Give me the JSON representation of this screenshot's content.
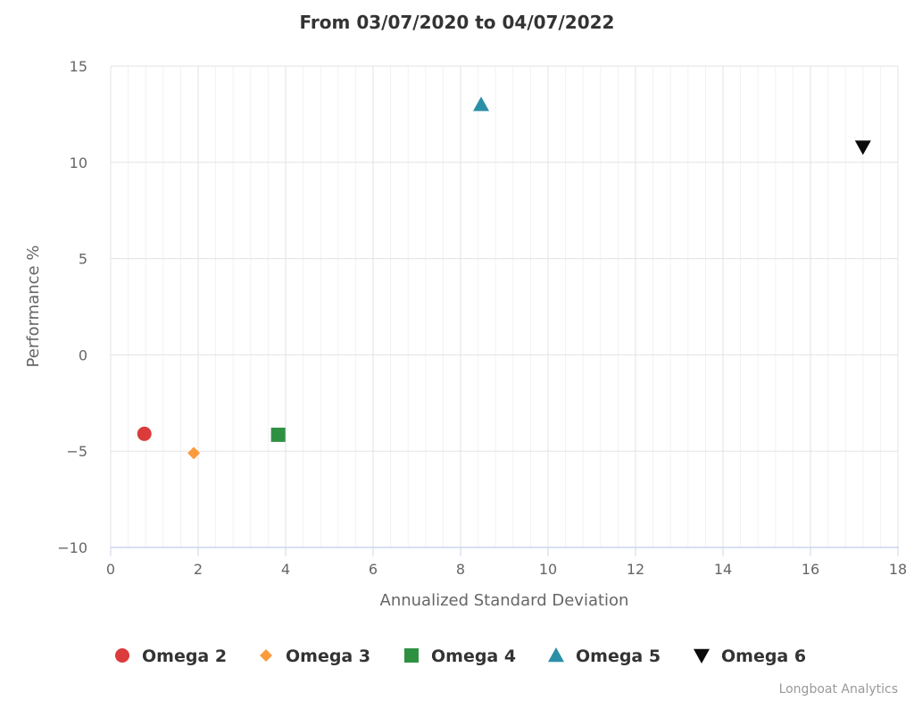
{
  "chart_data": {
    "type": "scatter",
    "title": "From 03/07/2020 to 04/07/2022",
    "xlabel": "Annualized Standard Deviation",
    "ylabel": "Performance %",
    "xlim": [
      0,
      18
    ],
    "ylim": [
      -10,
      15
    ],
    "x_ticks": [
      0,
      2,
      4,
      6,
      8,
      10,
      12,
      14,
      16,
      18
    ],
    "y_ticks": [
      15,
      10,
      5,
      0,
      -5,
      -10
    ],
    "y_tick_labels": [
      "15",
      "10",
      "5",
      "0",
      "−5",
      "−10"
    ],
    "grid": true,
    "legend_position": "bottom",
    "series": [
      {
        "name": "Omega 2",
        "marker": "circle",
        "color": "#db3b3b",
        "points": [
          {
            "x": 0.77,
            "y": -4.1
          }
        ]
      },
      {
        "name": "Omega 3",
        "marker": "diamond",
        "color": "#fb9b3e",
        "points": [
          {
            "x": 1.9,
            "y": -5.1
          }
        ]
      },
      {
        "name": "Omega 4",
        "marker": "square",
        "color": "#2e9142",
        "points": [
          {
            "x": 3.83,
            "y": -4.15
          }
        ]
      },
      {
        "name": "Omega 5",
        "marker": "triangle",
        "color": "#2b8fa8",
        "points": [
          {
            "x": 8.47,
            "y": 13.0
          }
        ]
      },
      {
        "name": "Omega 6",
        "marker": "triangle-down",
        "color": "#0a0a0a",
        "points": [
          {
            "x": 17.2,
            "y": 10.8
          }
        ]
      }
    ]
  },
  "credits": "Longboat Analytics"
}
